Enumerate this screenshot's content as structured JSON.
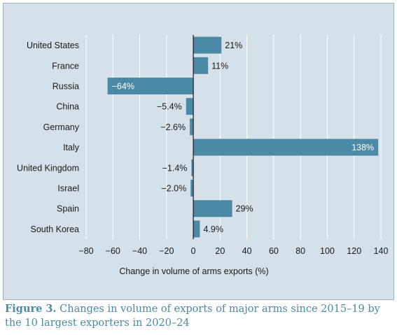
{
  "chart_data": {
    "type": "bar",
    "orientation": "horizontal",
    "categories": [
      "United States",
      "France",
      "Russia",
      "China",
      "Germany",
      "Italy",
      "United Kingdom",
      "Israel",
      "Spain",
      "South Korea"
    ],
    "values": [
      21,
      11,
      -64,
      -5.4,
      -2.6,
      138,
      -1.4,
      -2.0,
      29,
      4.9
    ],
    "value_labels": [
      "21%",
      "11%",
      "−64%",
      "−5.4%",
      "−2.6%",
      "138%",
      "−1.4%",
      "−2.0%",
      "29%",
      "4.9%"
    ],
    "xlabel": "Change in volume of arms exports (%)",
    "xlim": [
      -80,
      140
    ],
    "xticks": [
      -80,
      -60,
      -40,
      -20,
      0,
      20,
      40,
      60,
      80,
      100,
      120,
      140
    ],
    "xtick_labels": [
      "−80",
      "−60",
      "−40",
      "−20",
      "0",
      "20",
      "40",
      "60",
      "80",
      "100",
      "120",
      "140"
    ],
    "grid": true,
    "bar_color": "#4a8aa6"
  },
  "caption": {
    "label": "Figure 3.",
    "text": "Changes in volume of exports of major arms since 2015–19 by the 10 largest exporters in 2020–24"
  }
}
